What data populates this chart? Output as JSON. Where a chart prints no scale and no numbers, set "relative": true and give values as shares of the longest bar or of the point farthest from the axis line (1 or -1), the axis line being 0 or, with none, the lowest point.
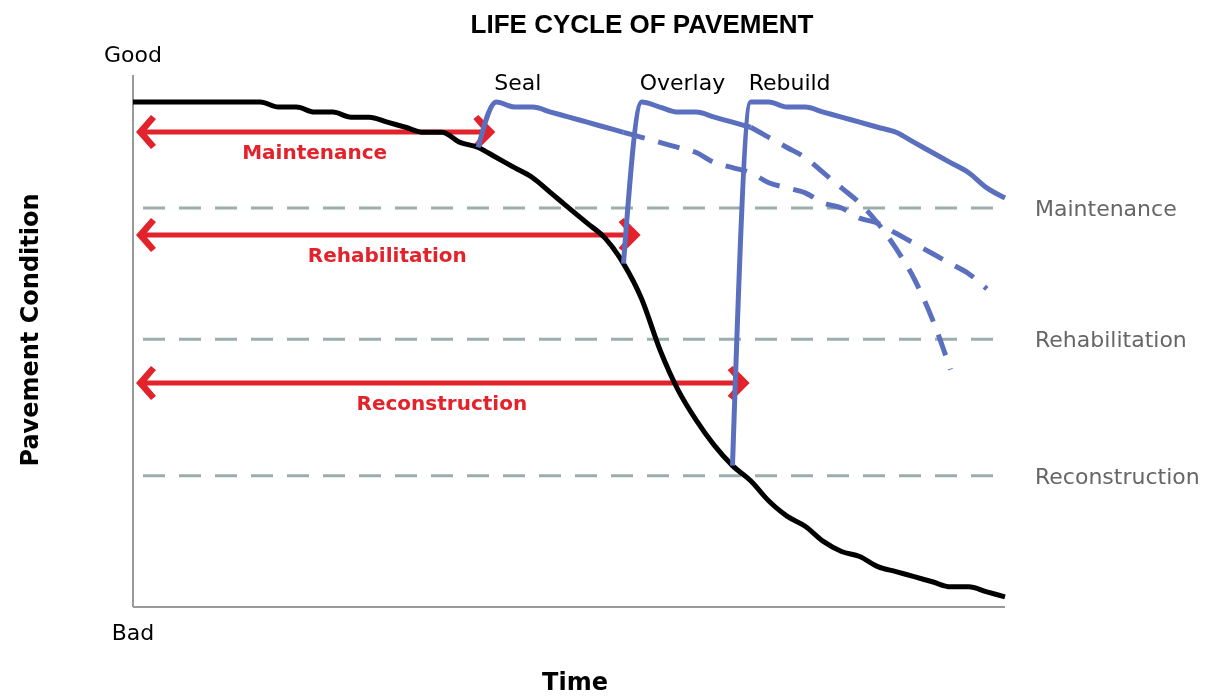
{
  "chart_data": {
    "type": "line",
    "title": "LIFE CYCLE OF PAVEMENT",
    "xlabel": "Time",
    "ylabel": "Pavement Condition",
    "relative": true,
    "legend": false,
    "grid": false,
    "marker": "none",
    "categories": [
      null,
      null,
      null,
      null,
      null,
      null,
      null,
      null,
      null,
      null,
      null,
      null,
      null,
      null,
      null,
      null,
      null,
      null,
      null,
      null,
      null,
      null,
      null,
      null,
      null,
      null,
      null,
      null,
      null,
      null,
      null,
      null,
      null,
      null,
      null,
      null,
      null,
      null,
      null,
      null,
      null,
      null,
      null,
      null,
      null,
      null,
      null,
      null,
      null
    ],
    "series": [
      {
        "color": "#000000",
        "line_style": "solid",
        "values": [
          1.0,
          1.0,
          1.0,
          1.0,
          1.0,
          1.0,
          1.0,
          1.0,
          0.99,
          0.99,
          0.98,
          0.98,
          0.97,
          0.97,
          0.96,
          0.95,
          0.94,
          0.94,
          0.92,
          0.91,
          0.89,
          0.87,
          0.85,
          0.82,
          0.79,
          0.76,
          0.73,
          0.68,
          0.61,
          0.51,
          0.43,
          0.37,
          0.32,
          0.28,
          0.25,
          0.21,
          0.18,
          0.16,
          0.13,
          0.11,
          0.1,
          0.08,
          0.07,
          0.06,
          0.05,
          0.04,
          0.04,
          0.03,
          0.02
        ]
      },
      {
        "name": "Seal",
        "color": "#5b6fbf",
        "line_style": "solid",
        "values": [
          null,
          null,
          null,
          null,
          null,
          null,
          null,
          null,
          null,
          null,
          null,
          null,
          null,
          null,
          null,
          null,
          null,
          null,
          null,
          0.91,
          1.0,
          0.99,
          0.99,
          0.98,
          0.97,
          0.96,
          0.95,
          0.94,
          null,
          null,
          null,
          null,
          null,
          null,
          null,
          null,
          null,
          null,
          null,
          null,
          null,
          null,
          null,
          null,
          null,
          null,
          null,
          null,
          null
        ]
      },
      {
        "color": "#5b6fbf",
        "line_style": "dashed",
        "values": [
          null,
          null,
          null,
          null,
          null,
          null,
          null,
          null,
          null,
          null,
          null,
          null,
          null,
          null,
          null,
          null,
          null,
          null,
          null,
          null,
          null,
          null,
          null,
          null,
          null,
          null,
          null,
          0.94,
          0.93,
          0.92,
          0.91,
          0.9,
          0.88,
          0.87,
          0.86,
          0.84,
          0.83,
          0.82,
          0.8,
          0.79,
          0.77,
          0.76,
          0.74,
          0.72,
          0.7,
          0.68,
          0.66,
          0.63,
          null
        ]
      },
      {
        "name": "Overlay",
        "color": "#5b6fbf",
        "line_style": "solid",
        "values": [
          null,
          null,
          null,
          null,
          null,
          null,
          null,
          null,
          null,
          null,
          null,
          null,
          null,
          null,
          null,
          null,
          null,
          null,
          null,
          null,
          null,
          null,
          null,
          null,
          null,
          null,
          null,
          0.68,
          1.0,
          0.99,
          0.98,
          0.98,
          0.97,
          0.96,
          0.95,
          null,
          null,
          null,
          null,
          null,
          null,
          null,
          null,
          null,
          null,
          null,
          null,
          null,
          null
        ]
      },
      {
        "color": "#5b6fbf",
        "line_style": "dashed",
        "values": [
          null,
          null,
          null,
          null,
          null,
          null,
          null,
          null,
          null,
          null,
          null,
          null,
          null,
          null,
          null,
          null,
          null,
          null,
          null,
          null,
          null,
          null,
          null,
          null,
          null,
          null,
          null,
          null,
          null,
          null,
          null,
          null,
          null,
          null,
          0.95,
          0.93,
          0.91,
          0.89,
          0.86,
          0.83,
          0.8,
          0.76,
          0.71,
          0.65,
          0.57,
          0.47,
          null,
          null,
          null
        ]
      },
      {
        "name": "Rebuild",
        "color": "#5b6fbf",
        "line_style": "solid",
        "values": [
          null,
          null,
          null,
          null,
          null,
          null,
          null,
          null,
          null,
          null,
          null,
          null,
          null,
          null,
          null,
          null,
          null,
          null,
          null,
          null,
          null,
          null,
          null,
          null,
          null,
          null,
          null,
          null,
          null,
          null,
          null,
          null,
          null,
          0.28,
          1.0,
          1.0,
          0.99,
          0.99,
          0.98,
          0.97,
          0.96,
          0.95,
          0.94,
          0.92,
          0.9,
          0.88,
          0.86,
          0.83,
          0.81
        ]
      }
    ],
    "ref_lines": [
      {
        "axis": "y",
        "value": 0.79,
        "label": "Maintenance",
        "color": "#9aaeab",
        "line_style": "dashed"
      },
      {
        "axis": "y",
        "value": 0.53,
        "label": "Rehabilitation",
        "color": "#9aaeab",
        "line_style": "dashed"
      },
      {
        "axis": "y",
        "value": 0.26,
        "label": "Reconstruction",
        "color": "#9aaeab",
        "line_style": "dashed"
      }
    ],
    "annotations": [
      "Good",
      "Bad",
      "Maintenance",
      "Rehabilitation",
      "Reconstruction"
    ]
  }
}
